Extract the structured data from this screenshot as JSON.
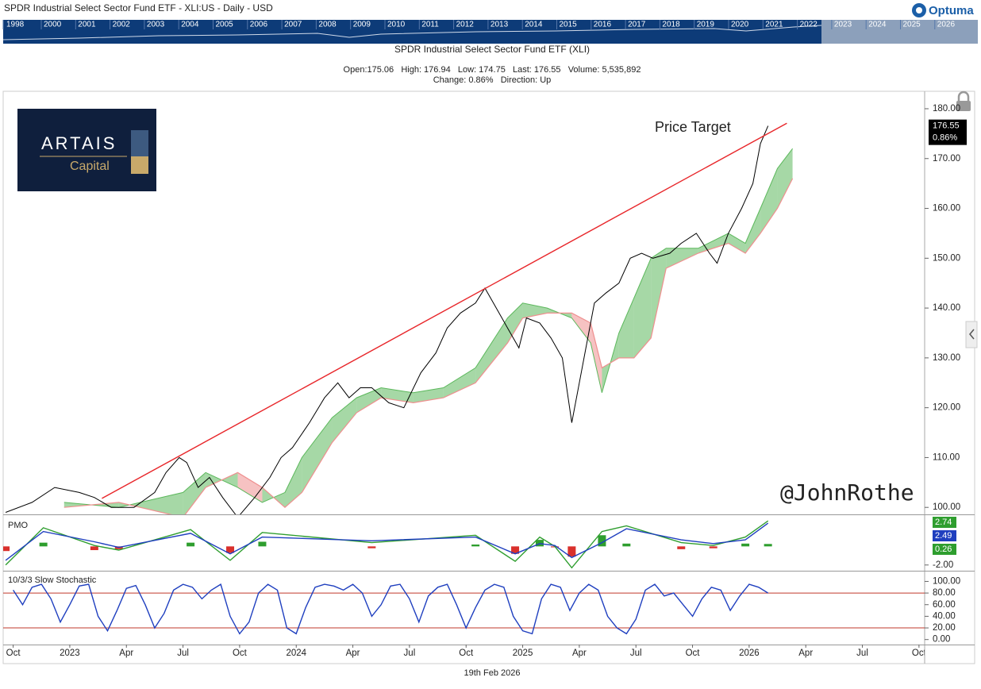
{
  "header": {
    "title": "SPDR Industrial Select Sector Fund ETF - XLI:US - Daily - USD",
    "brand": "Optuma",
    "years": [
      1998,
      2000,
      2001,
      2002,
      2003,
      2004,
      2005,
      2006,
      2007,
      2008,
      2009,
      2010,
      2011,
      2012,
      2013,
      2014,
      2015,
      2016,
      2017,
      2018,
      2019,
      2020,
      2021,
      2022,
      2023,
      2024,
      2025,
      2026
    ],
    "logo": [
      "ARTAIS",
      "Capital"
    ]
  },
  "footer": {
    "date": "19th Feb 2026"
  },
  "chart_data": [
    {
      "type": "line",
      "title": "SPDR Industrial Select Sector Fund ETF (XLI)",
      "stats": [
        "Open:175.06   High: 176.94   Low: 174.75   Last: 176.55   Volume: 5,535,892",
        "Change: 0.86%   Direction: Up"
      ],
      "annotations": [
        "Price Target",
        "@JohnRothe"
      ],
      "change": "0.86%",
      "xlim": [
        -0.53,
        48.3
      ],
      "ylim": [
        98.6,
        183.5
      ],
      "yticks": [
        {
          "value": 100,
          "label": "100.00"
        },
        {
          "value": 110,
          "label": "110.00"
        },
        {
          "value": 120,
          "label": "120.00"
        },
        {
          "value": 130,
          "label": "130.00"
        },
        {
          "value": 140,
          "label": "140.00"
        },
        {
          "value": 150,
          "label": "150.00"
        },
        {
          "value": 160,
          "label": "160.00"
        },
        {
          "value": 170,
          "label": "170.00"
        },
        {
          "value": 180,
          "label": "180.00"
        }
      ],
      "series": [
        {
          "color": "#000000",
          "x": [
            -0.4,
            1.0,
            2.2,
            3.5,
            4.3,
            5.2,
            6.4,
            7.5,
            8.1,
            8.8,
            9.2,
            9.8,
            10.4,
            11.1,
            11.9,
            12.8,
            13.6,
            14.2,
            14.8,
            15.7,
            16.5,
            17.2,
            17.8,
            18.4,
            19.0,
            19.9,
            20.7,
            21.6,
            22.4,
            23.0,
            23.7,
            24.5,
            25.0,
            25.6,
            26.2,
            26.8,
            27.2,
            27.9,
            28.5,
            29.1,
            29.6,
            30.0,
            30.4,
            30.8,
            31.4,
            32.1,
            32.7,
            33.3,
            33.9,
            34.8,
            35.4,
            36.2,
            36.9,
            37.3,
            37.9,
            38.6,
            39.2,
            39.6,
            40.0
          ],
          "values": [
            99,
            101,
            104,
            103,
            102,
            100,
            100,
            103,
            107,
            110,
            109,
            104,
            106,
            102,
            98,
            102,
            106,
            110,
            112,
            117,
            122,
            125,
            122,
            124,
            124,
            121,
            120,
            127,
            131,
            136,
            139,
            141,
            144,
            140,
            136,
            132,
            138,
            137,
            134,
            130,
            117,
            125,
            133,
            141,
            143,
            145,
            150,
            151,
            150,
            151,
            153,
            155,
            151,
            149,
            155,
            160,
            165,
            173,
            176.55
          ]
        },
        {
          "color": "#e8262a",
          "x": [
            4.7,
            41.0
          ],
          "values": [
            101.8,
            177.1
          ]
        }
      ],
      "cloud": {
        "colors": [
          "#5cb85c",
          "#ef8f8f"
        ],
        "x": [
          2.7,
          5.6,
          9.0,
          10.2,
          11.9,
          13.2,
          14.4,
          15.3,
          16.9,
          18.2,
          19.5,
          21.2,
          22.8,
          24.5,
          26.2,
          27.0,
          28.3,
          29.6,
          30.6,
          31.2,
          32.1,
          32.9,
          33.8,
          34.6,
          36.3,
          37.9,
          38.8,
          39.6,
          40.5,
          41.3
        ],
        "span_a": [
          101,
          100,
          103,
          107,
          104,
          101,
          103,
          110,
          118,
          122,
          124,
          123,
          124,
          128,
          138,
          141,
          140,
          138,
          133,
          123,
          135,
          142,
          150,
          152,
          152,
          155,
          153,
          160,
          168,
          172
        ],
        "span_b": [
          100,
          101,
          98,
          104,
          107,
          104,
          100,
          103,
          113,
          119,
          122,
          121,
          122,
          125,
          133,
          138,
          139,
          139,
          137,
          128,
          130,
          130,
          134,
          148,
          151,
          153,
          151,
          155,
          160,
          166
        ]
      }
    },
    {
      "type": "line",
      "title": "PMO",
      "xlim": [
        -0.53,
        48.3
      ],
      "ylim": [
        -2.53,
        3.27
      ],
      "yticks": [
        {
          "value": -2,
          "label": "-2.00"
        }
      ],
      "series": [
        {
          "color": "#2f9e2f",
          "x": [
            -0.4,
            1.6,
            4.3,
            5.6,
            9.4,
            11.5,
            13.2,
            19.0,
            24.5,
            26.6,
            27.9,
            28.7,
            29.6,
            31.2,
            32.5,
            35.4,
            37.1,
            38.8,
            40.0
          ],
          "values": [
            -2,
            2,
            0.1,
            -0.4,
            1.8,
            -1.5,
            1.5,
            0.4,
            1.2,
            -1.6,
            1.0,
            0,
            -2.3,
            1.6,
            2.2,
            0.4,
            0.1,
            1.0,
            2.74
          ]
        },
        {
          "color": "#1f3fbf",
          "x": [
            -0.4,
            1.6,
            4.3,
            5.6,
            9.4,
            11.5,
            13.2,
            19.0,
            24.5,
            26.6,
            27.9,
            28.7,
            29.6,
            31.2,
            32.5,
            35.4,
            37.1,
            38.8,
            40.0
          ],
          "values": [
            -1.5,
            1.6,
            0.5,
            -0.1,
            1.4,
            -0.8,
            1.0,
            0.6,
            1.0,
            -0.8,
            0.3,
            0.1,
            -1.2,
            0.4,
            1.9,
            0.7,
            0.3,
            0.7,
            2.49
          ]
        }
      ],
      "histogram": {
        "colors": [
          "#2e9e2e",
          "#d9302c"
        ],
        "x": [
          -0.4,
          1.6,
          4.3,
          5.6,
          9.4,
          11.5,
          13.2,
          19.0,
          24.5,
          26.6,
          27.9,
          28.7,
          29.6,
          31.2,
          32.5,
          35.4,
          37.1,
          38.8,
          40.0
        ],
        "values": [
          -0.5,
          0.4,
          -0.4,
          -0.3,
          0.4,
          -0.7,
          0.5,
          -0.2,
          0.2,
          -0.8,
          0.7,
          -0.1,
          -1.1,
          1.2,
          0.3,
          -0.3,
          -0.2,
          0.3,
          0.26
        ]
      }
    },
    {
      "type": "line",
      "title": "10/3/3 Slow Stochastic",
      "xlim": [
        -0.53,
        48.3
      ],
      "ylim": [
        -8.6,
        117
      ],
      "yticks": [
        {
          "value": 0,
          "label": "0.00"
        },
        {
          "value": 20,
          "label": "20.00"
        },
        {
          "value": 40,
          "label": "40.00"
        },
        {
          "value": 60,
          "label": "60.00"
        },
        {
          "value": 80,
          "label": "80.00"
        },
        {
          "value": 100,
          "label": "100.00"
        }
      ],
      "levels": [
        20,
        80
      ],
      "level_color": "#c0392b",
      "xticks": [
        {
          "value": 0,
          "label": "Oct"
        },
        {
          "value": 3,
          "label": "2023"
        },
        {
          "value": 6,
          "label": "Apr"
        },
        {
          "value": 9,
          "label": "Jul"
        },
        {
          "value": 12,
          "label": "Oct"
        },
        {
          "value": 15,
          "label": "2024"
        },
        {
          "value": 18,
          "label": "Apr"
        },
        {
          "value": 21,
          "label": "Jul"
        },
        {
          "value": 24,
          "label": "Oct"
        },
        {
          "value": 27,
          "label": "2025"
        },
        {
          "value": 30,
          "label": "Apr"
        },
        {
          "value": 33,
          "label": "Jul"
        },
        {
          "value": 36,
          "label": "Oct"
        },
        {
          "value": 39,
          "label": "2026"
        },
        {
          "value": 42,
          "label": "Apr"
        },
        {
          "value": 45,
          "label": "Jul"
        },
        {
          "value": 48,
          "label": "Oct"
        }
      ],
      "series": [
        {
          "color": "#1f3fbf",
          "x": [
            0,
            0.5,
            1,
            1.5,
            2,
            2.5,
            3,
            3.5,
            4,
            4.5,
            5,
            5.5,
            6,
            6.5,
            7,
            7.5,
            8,
            8.5,
            9,
            9.5,
            10,
            10.5,
            11,
            11.5,
            12,
            12.5,
            13,
            13.5,
            14,
            14.5,
            15,
            15.5,
            16,
            16.5,
            17,
            17.5,
            18,
            18.5,
            19,
            19.5,
            20,
            20.5,
            21,
            21.5,
            22,
            22.5,
            23,
            23.5,
            24,
            24.5,
            25,
            25.5,
            26,
            26.5,
            27,
            27.5,
            28,
            28.5,
            29,
            29.5,
            30,
            30.5,
            31,
            31.5,
            32,
            32.5,
            33,
            33.5,
            34,
            34.5,
            35,
            35.5,
            36,
            36.5,
            37,
            37.5,
            38,
            38.5,
            39,
            39.5,
            40
          ],
          "values": [
            85,
            60,
            90,
            95,
            70,
            30,
            60,
            92,
            95,
            40,
            15,
            50,
            88,
            93,
            60,
            20,
            45,
            85,
            95,
            90,
            70,
            85,
            95,
            40,
            10,
            30,
            80,
            95,
            85,
            20,
            10,
            55,
            90,
            95,
            92,
            85,
            95,
            80,
            40,
            60,
            92,
            95,
            70,
            30,
            75,
            90,
            95,
            60,
            20,
            55,
            85,
            95,
            90,
            40,
            15,
            10,
            70,
            95,
            90,
            50,
            80,
            95,
            85,
            40,
            20,
            10,
            35,
            85,
            95,
            75,
            80,
            60,
            40,
            70,
            90,
            85,
            50,
            75,
            95,
            90,
            80
          ]
        }
      ]
    }
  ]
}
